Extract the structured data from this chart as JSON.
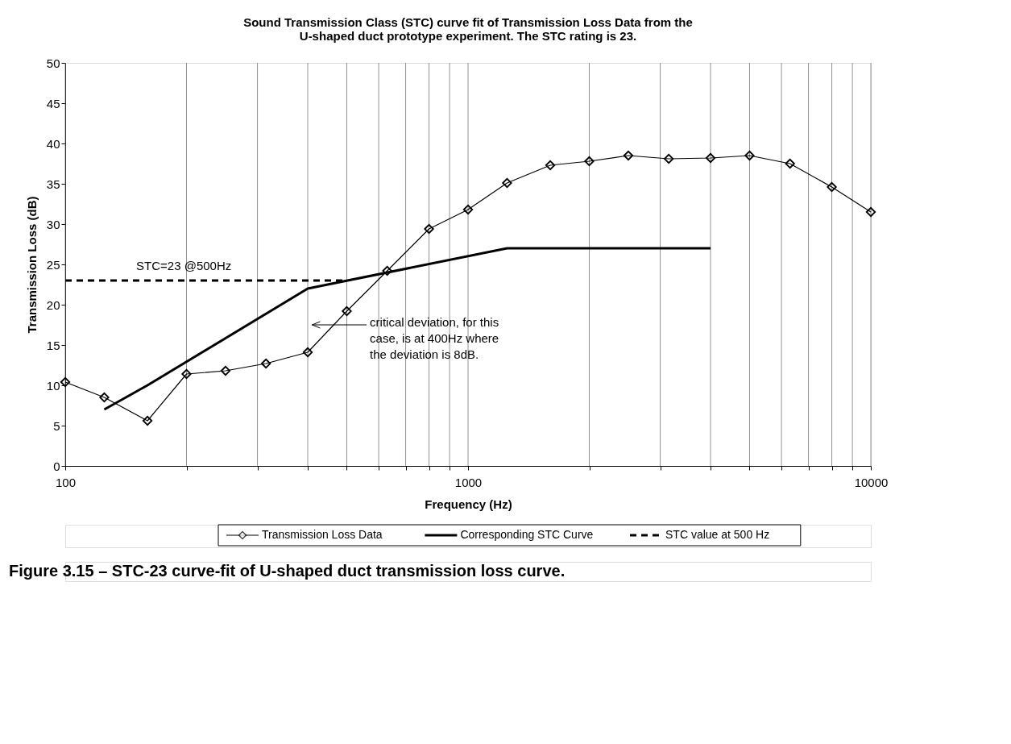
{
  "chart_data": {
    "type": "line",
    "title": "Sound Transmission Class (STC) curve fit of Transmission Loss Data from the\nU-shaped duct prototype experiment. The STC rating is 23.",
    "xlabel": "Frequency (Hz)",
    "ylabel": "Transmission Loss (dB)",
    "log": "x",
    "xlim": [
      100,
      10000
    ],
    "ylim": [
      0,
      50
    ],
    "xticks": [
      100,
      {
        "value": 200,
        "label": null
      },
      {
        "value": 300,
        "label": null
      },
      {
        "value": 400,
        "label": null
      },
      {
        "value": 500,
        "label": null
      },
      {
        "value": 600,
        "label": null
      },
      {
        "value": 700,
        "label": null
      },
      {
        "value": 800,
        "label": null
      },
      {
        "value": 900,
        "label": null
      },
      1000,
      {
        "value": 2000,
        "label": null
      },
      {
        "value": 3000,
        "label": null
      },
      {
        "value": 4000,
        "label": null
      },
      {
        "value": 5000,
        "label": null
      },
      {
        "value": 6000,
        "label": null
      },
      {
        "value": 7000,
        "label": null
      },
      {
        "value": 8000,
        "label": null
      },
      {
        "value": 9000,
        "label": null
      },
      10000
    ],
    "yticks": [
      0,
      5,
      10,
      15,
      20,
      25,
      30,
      35,
      40,
      45,
      50
    ],
    "grid": "x",
    "legend": "bottom",
    "series": [
      {
        "name": "Transmission Loss Data",
        "color": "#000000",
        "marker": "diamond",
        "line_style": "solid",
        "x": [
          100,
          125,
          160,
          200,
          250,
          315,
          400,
          500,
          630,
          800,
          1000,
          1250,
          1600,
          2000,
          2500,
          3150,
          4000,
          5000,
          6300,
          8000,
          10000
        ],
        "values": [
          10.4,
          8.5,
          5.6,
          11.4,
          11.8,
          12.7,
          14.1,
          19.2,
          24.2,
          29.4,
          31.8,
          35.1,
          37.3,
          37.8,
          38.5,
          38.1,
          38.2,
          38.5,
          37.5,
          34.6,
          31.5
        ]
      },
      {
        "name": "Corresponding STC Curve",
        "color": "#000000",
        "marker": "none",
        "line_style": "solid",
        "x": [
          125,
          160,
          400,
          1250,
          4000
        ],
        "values": [
          7,
          10,
          22,
          27,
          27
        ]
      },
      {
        "name": "STC value at 500 Hz",
        "color": "#000000",
        "marker": "none",
        "line_style": "dashed",
        "x": [
          100,
          500
        ],
        "values": [
          23,
          23
        ]
      }
    ],
    "annotations": [
      "STC=23 @500Hz",
      "critical deviation, for this\ncase, is at 400Hz where\nthe deviation is 8dB.",
      "Figure 3.15 – STC-23 curve-fit of U-shaped duct transmission loss curve."
    ]
  }
}
